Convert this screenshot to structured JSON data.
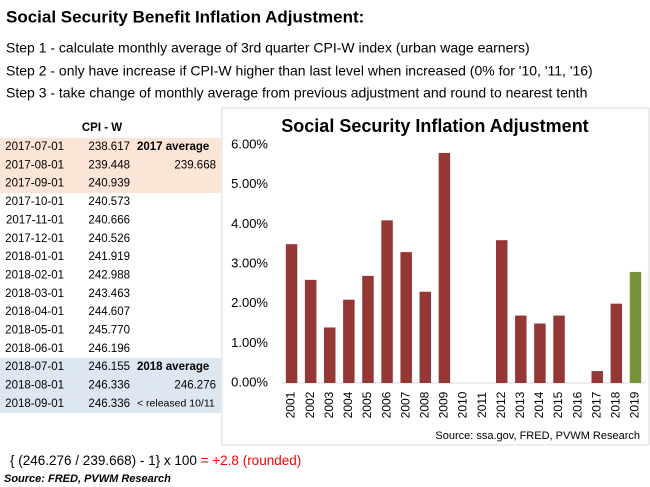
{
  "title": "Social Security Benefit Inflation Adjustment:",
  "steps": [
    "Step 1 - calculate monthly average of 3rd quarter CPI-W index (urban wage earners)",
    "Step 2 - only have increase if CPI-W higher than last level when increased (0% for '10, '11, '16)",
    "Step 3 - take change of monthly average from previous adjustment and round to nearest tenth"
  ],
  "table": {
    "header": "CPI - W",
    "rows": [
      {
        "date": "2017-07-01",
        "cpi": "238.617",
        "note": "2017 average",
        "bg": "#fce4d6"
      },
      {
        "date": "2017-08-01",
        "cpi": "239.448",
        "avg": "239.668",
        "bg": "#fce4d6"
      },
      {
        "date": "2017-09-01",
        "cpi": "240.939",
        "bg": "#fce4d6"
      },
      {
        "date": "2017-10-01",
        "cpi": "240.573"
      },
      {
        "date": "2017-11-01",
        "cpi": "240.666"
      },
      {
        "date": "2017-12-01",
        "cpi": "240.526"
      },
      {
        "date": "2018-01-01",
        "cpi": "241.919"
      },
      {
        "date": "2018-02-01",
        "cpi": "242.988"
      },
      {
        "date": "2018-03-01",
        "cpi": "243.463"
      },
      {
        "date": "2018-04-01",
        "cpi": "244.607"
      },
      {
        "date": "2018-05-01",
        "cpi": "245.770"
      },
      {
        "date": "2018-06-01",
        "cpi": "246.196"
      },
      {
        "date": "2018-07-01",
        "cpi": "246.155",
        "note": "2018 average",
        "bg": "#dde7f1"
      },
      {
        "date": "2018-08-01",
        "cpi": "246.336",
        "avg": "246.276",
        "bg": "#dde7f1"
      },
      {
        "date": "2018-09-01",
        "cpi": "246.336",
        "note": "< released 10/11",
        "bg": "#dde7f1",
        "color": "#ff0000"
      }
    ]
  },
  "formula": "{ (246.276 / 239.668) - 1} x 100 ",
  "formula_result": "= +2.8 (rounded)",
  "source": "Source:  FRED, PVWM Research",
  "chart_data": {
    "type": "bar",
    "title": "Social Security Inflation Adjustment",
    "categories": [
      "2001",
      "2002",
      "2003",
      "2004",
      "2005",
      "2006",
      "2007",
      "2008",
      "2009",
      "2010",
      "2011",
      "2012",
      "2013",
      "2014",
      "2015",
      "2016",
      "2017",
      "2018",
      "2019"
    ],
    "values": [
      3.5,
      2.6,
      1.4,
      2.1,
      2.7,
      4.1,
      3.3,
      2.3,
      5.8,
      0,
      0,
      3.6,
      1.7,
      1.5,
      1.7,
      0,
      0.3,
      2.0,
      2.8
    ],
    "colors": [
      "#953735",
      "#953735",
      "#953735",
      "#953735",
      "#953735",
      "#953735",
      "#953735",
      "#953735",
      "#953735",
      "#953735",
      "#953735",
      "#953735",
      "#953735",
      "#953735",
      "#953735",
      "#953735",
      "#953735",
      "#953735",
      "#77933c"
    ],
    "ylim": [
      0,
      6.2
    ],
    "yticks": [
      {
        "value": 0,
        "label": "0.00%"
      },
      {
        "value": 1,
        "label": "1.00%"
      },
      {
        "value": 2,
        "label": "2.00%"
      },
      {
        "value": 3,
        "label": "3.00%"
      },
      {
        "value": 4,
        "label": "4.00%"
      },
      {
        "value": 5,
        "label": "5.00%"
      },
      {
        "value": 6,
        "label": "6.00%"
      }
    ],
    "grid": false,
    "source": "Source:  ssa.gov, FRED, PVWM Research"
  }
}
